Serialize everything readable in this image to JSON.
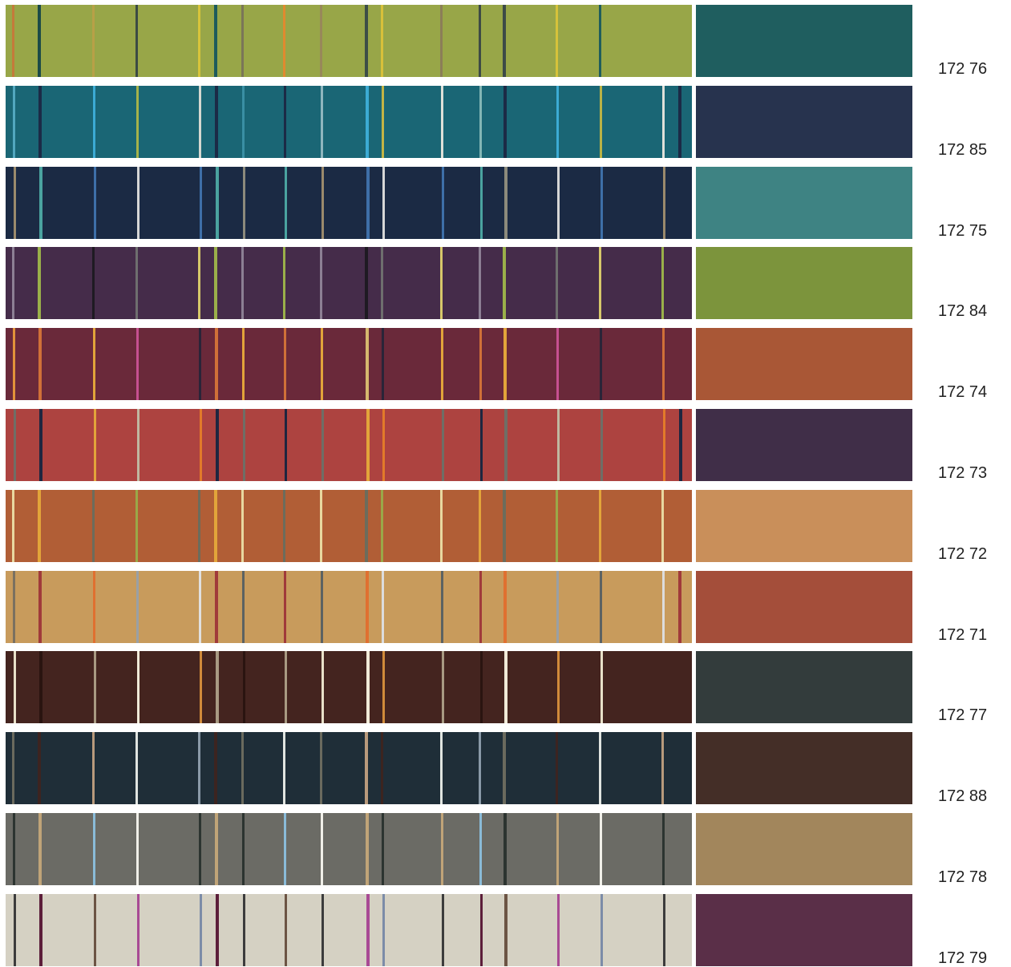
{
  "swatches": [
    {
      "code": "172 76",
      "base": "#98a648",
      "solid": "#1f5e5f",
      "lines": [
        "#c47a3a",
        "#1c4a47",
        "#b8a047",
        "#3b4a44",
        "#d8c43a",
        "#1d5b5c",
        "#7a7658",
        "#e08a2f",
        "#98885a",
        "#3c4d47",
        "#d8c03a",
        "#8b7e58",
        "#3d4a45",
        "#3c4a47",
        "#d6c23a",
        "#1f5d5c"
      ]
    },
    {
      "code": "172 85",
      "base": "#1a6675",
      "solid": "#27334e",
      "lines": [
        "#52a7bf",
        "#1c2a46",
        "#3cabd4",
        "#a6b24a",
        "#d6d8d0",
        "#1c2a46",
        "#3a8fa4",
        "#1c2a46",
        "#8fb6be",
        "#3cabd4",
        "#c3b445",
        "#dfe0d8",
        "#83b6b5",
        "#1c2a46",
        "#3cabd4",
        "#bab245",
        "#e0e0d8",
        "#1c2a46"
      ]
    },
    {
      "code": "172 75",
      "base": "#1b2a44",
      "solid": "#3e8383",
      "lines": [
        "#9b8a6c",
        "#4aa3a0",
        "#3e6fa8",
        "#d6d6d6",
        "#3e6fa8",
        "#4aa3a0",
        "#8c8a7c",
        "#4aa3a0",
        "#9b8a6c",
        "#3e6fa8",
        "#d6d6d6",
        "#3e6fa8",
        "#4aa3a0",
        "#8c8a7c",
        "#d6d6d6",
        "#3e6fa8",
        "#9b8a6c"
      ]
    },
    {
      "code": "172 84",
      "base": "#452c4a",
      "solid": "#7c943c",
      "lines": [
        "#8c8094",
        "#9ab04a",
        "#1e1a22",
        "#6e6e6e",
        "#d6c86a",
        "#9ab04a",
        "#8c8094",
        "#9ab04a",
        "#8c8094",
        "#1e1a22",
        "#6e6e6e",
        "#d6c86a",
        "#8c8094",
        "#9ab04a",
        "#6e6e6e",
        "#d6c86a",
        "#9ab04a"
      ]
    },
    {
      "code": "172 74",
      "base": "#6a293a",
      "solid": "#a95736",
      "lines": [
        "#e2933a",
        "#d07038",
        "#e2a43a",
        "#c65090",
        "#2a2438",
        "#d07038",
        "#e2a43a",
        "#d07038",
        "#e2a43a",
        "#d6b86e",
        "#2a2438",
        "#e2a43a",
        "#d07038",
        "#e2a43a",
        "#c65090",
        "#2a2438",
        "#d07038"
      ]
    },
    {
      "code": "172 73",
      "base": "#ad4340",
      "solid": "#402e48",
      "lines": [
        "#6f6e66",
        "#1e2640",
        "#e2a43a",
        "#c0b8a0",
        "#e27a2a",
        "#1e2640",
        "#6f6e66",
        "#1e2640",
        "#6f6e66",
        "#e2a43a",
        "#e27a2a",
        "#6f6e66",
        "#1e2640",
        "#6f6e66",
        "#c0b8a0",
        "#6f6e66",
        "#e27a2a",
        "#1e2640"
      ]
    },
    {
      "code": "172 72",
      "base": "#b15e36",
      "solid": "#c98f5a",
      "lines": [
        "#e8d8a0",
        "#e2a43a",
        "#6c6c5c",
        "#9aa848",
        "#6c6c5c",
        "#e2a43a",
        "#e8d8a0",
        "#6c6c5c",
        "#e8d8a0",
        "#6c6c5c",
        "#9aa848",
        "#e8d8a0",
        "#e2a43a",
        "#6c6c5c",
        "#9aa848",
        "#e2a43a",
        "#e8d8a0"
      ]
    },
    {
      "code": "172 71",
      "base": "#c89b5c",
      "solid": "#a44e3a",
      "lines": [
        "#7a7060",
        "#a03a3a",
        "#e07030",
        "#9aa0a4",
        "#e0e0e0",
        "#a03a3a",
        "#5c6262",
        "#a03a3a",
        "#5c6262",
        "#e07030",
        "#dcdcdc",
        "#5c6262",
        "#a03a3a",
        "#e07030",
        "#9aa0a4",
        "#5c6262",
        "#dcdcdc",
        "#a03a3a"
      ]
    },
    {
      "code": "172 77",
      "base": "#44241f",
      "solid": "#333c3c",
      "lines": [
        "#e8e0c8",
        "#2a1410",
        "#a89a82",
        "#f0ead8",
        "#d08a3a",
        "#a89a82",
        "#2a1410",
        "#a89a82",
        "#e8e0c8",
        "#f0ead8",
        "#d08a3a",
        "#a89a82",
        "#2a1410",
        "#f0ead8",
        "#d08a3a",
        "#e8e0c8"
      ]
    },
    {
      "code": "172 88",
      "base": "#1f2e38",
      "solid": "#442e27",
      "lines": [
        "#6a6a5e",
        "#3c2420",
        "#b89a7c",
        "#e0e4e0",
        "#8a9aa8",
        "#3c2420",
        "#6a6a5e",
        "#e0e4e0",
        "#6a6a5e",
        "#b89a7c",
        "#3c2420",
        "#e0e4e0",
        "#8a9aa8",
        "#6a6a5e",
        "#3c2420",
        "#e0e4e0",
        "#b89a7c"
      ]
    },
    {
      "code": "172 78",
      "base": "#6b6b65",
      "solid": "#a2865c",
      "lines": [
        "#2c3430",
        "#c0a478",
        "#8abbd8",
        "#f0efe8",
        "#2c3430",
        "#c0a478",
        "#2c3430",
        "#8abbd8",
        "#f0efe8",
        "#c0a478",
        "#2c3430",
        "#c0a478",
        "#8abbd8",
        "#2c3430",
        "#c0a478",
        "#f0efe8",
        "#2c3430"
      ]
    },
    {
      "code": "172 79",
      "base": "#d5d1c3",
      "solid": "#5a2f48",
      "lines": [
        "#3c3c3c",
        "#5c1e3a",
        "#6c5444",
        "#a84a94",
        "#7c8ca8",
        "#5c1e3a",
        "#3c3c3c",
        "#6c5444",
        "#3c3c3c",
        "#a84a94",
        "#7c8ca8",
        "#3c3c3c",
        "#5c1e3a",
        "#6c5444",
        "#a84a94",
        "#7c8ca8",
        "#3c3c3c"
      ]
    }
  ]
}
